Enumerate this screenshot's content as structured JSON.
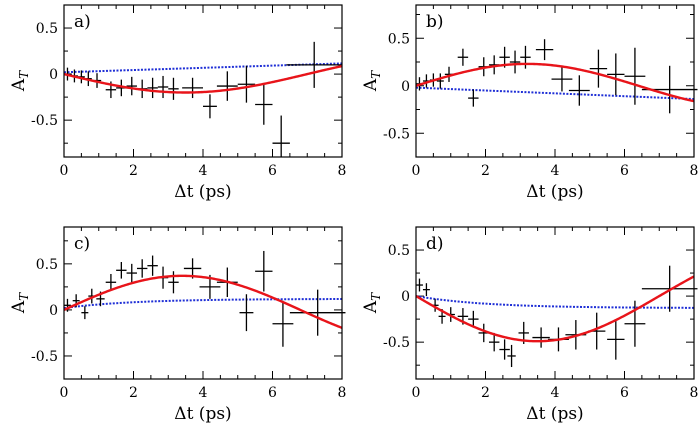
{
  "chart_data": [
    {
      "type": "scatter",
      "panel_label": "a)",
      "xlabel": "Δt (ps)",
      "ylabel": "A",
      "ylabel_sub": "T",
      "xlim": [
        0,
        8
      ],
      "ylim": [
        -0.9,
        0.75
      ],
      "xticks": [
        0,
        2,
        4,
        6,
        8
      ],
      "yticks": [
        0.5,
        0,
        -0.5
      ],
      "ytick_labels": [
        "0.5",
        "0",
        "-0.5"
      ],
      "curves": {
        "fit": {
          "color": "#e8141a",
          "offset": 0,
          "amp": -0.2,
          "t0": 3.5,
          "tail": 0.7
        },
        "reference": {
          "color": "#1f2fd6",
          "offset": 0.02,
          "slope": 0.012
        }
      },
      "points": [
        {
          "x": 0.1,
          "y": 0.0,
          "xerr": 0.1,
          "yerr": 0.07
        },
        {
          "x": 0.3,
          "y": -0.02,
          "xerr": 0.1,
          "yerr": 0.07
        },
        {
          "x": 0.5,
          "y": -0.03,
          "xerr": 0.1,
          "yerr": 0.07
        },
        {
          "x": 0.7,
          "y": -0.05,
          "xerr": 0.1,
          "yerr": 0.08
        },
        {
          "x": 0.95,
          "y": -0.07,
          "xerr": 0.12,
          "yerr": 0.08
        },
        {
          "x": 1.35,
          "y": -0.17,
          "xerr": 0.15,
          "yerr": 0.09
        },
        {
          "x": 1.65,
          "y": -0.15,
          "xerr": 0.15,
          "yerr": 0.09
        },
        {
          "x": 1.95,
          "y": -0.13,
          "xerr": 0.15,
          "yerr": 0.1
        },
        {
          "x": 2.25,
          "y": -0.16,
          "xerr": 0.15,
          "yerr": 0.1
        },
        {
          "x": 2.55,
          "y": -0.15,
          "xerr": 0.15,
          "yerr": 0.11
        },
        {
          "x": 2.85,
          "y": -0.14,
          "xerr": 0.15,
          "yerr": 0.12
        },
        {
          "x": 3.15,
          "y": -0.16,
          "xerr": 0.15,
          "yerr": 0.12
        },
        {
          "x": 3.7,
          "y": -0.15,
          "xerr": 0.3,
          "yerr": 0.11
        },
        {
          "x": 4.2,
          "y": -0.35,
          "xerr": 0.2,
          "yerr": 0.13
        },
        {
          "x": 4.7,
          "y": -0.13,
          "xerr": 0.3,
          "yerr": 0.16
        },
        {
          "x": 5.25,
          "y": -0.11,
          "xerr": 0.25,
          "yerr": 0.2
        },
        {
          "x": 5.75,
          "y": -0.33,
          "xerr": 0.25,
          "yerr": 0.22
        },
        {
          "x": 6.25,
          "y": -0.75,
          "xerr": 0.25,
          "yerr": 0.3
        },
        {
          "x": 7.2,
          "y": 0.1,
          "xerr": 0.8,
          "yerr": 0.25
        }
      ]
    },
    {
      "type": "scatter",
      "panel_label": "b)",
      "xlabel": "Δt (ps)",
      "ylabel": "A",
      "ylabel_sub": "T",
      "xlim": [
        0,
        8
      ],
      "ylim": [
        -0.75,
        0.85
      ],
      "xticks": [
        0,
        2,
        4,
        6,
        8
      ],
      "yticks": [
        0.5,
        0,
        -0.5
      ],
      "ytick_labels": [
        "0.5",
        "0",
        "-0.5"
      ],
      "curves": {
        "fit": {
          "color": "#e8141a",
          "offset": 0,
          "amp": 0.23,
          "t0": 3.2,
          "tail": 0.75
        },
        "reference": {
          "color": "#1f2fd6",
          "offset": -0.02,
          "slope": -0.015
        }
      },
      "points": [
        {
          "x": 0.1,
          "y": 0.02,
          "xerr": 0.1,
          "yerr": 0.07
        },
        {
          "x": 0.3,
          "y": 0.05,
          "xerr": 0.1,
          "yerr": 0.07
        },
        {
          "x": 0.5,
          "y": 0.06,
          "xerr": 0.1,
          "yerr": 0.07
        },
        {
          "x": 0.7,
          "y": 0.05,
          "xerr": 0.1,
          "yerr": 0.08
        },
        {
          "x": 0.95,
          "y": 0.12,
          "xerr": 0.12,
          "yerr": 0.08
        },
        {
          "x": 1.35,
          "y": 0.3,
          "xerr": 0.15,
          "yerr": 0.09
        },
        {
          "x": 1.65,
          "y": -0.13,
          "xerr": 0.15,
          "yerr": 0.09
        },
        {
          "x": 1.95,
          "y": 0.2,
          "xerr": 0.15,
          "yerr": 0.1
        },
        {
          "x": 2.25,
          "y": 0.22,
          "xerr": 0.15,
          "yerr": 0.1
        },
        {
          "x": 2.55,
          "y": 0.3,
          "xerr": 0.15,
          "yerr": 0.11
        },
        {
          "x": 2.85,
          "y": 0.25,
          "xerr": 0.15,
          "yerr": 0.12
        },
        {
          "x": 3.15,
          "y": 0.3,
          "xerr": 0.15,
          "yerr": 0.12
        },
        {
          "x": 3.7,
          "y": 0.38,
          "xerr": 0.25,
          "yerr": 0.11
        },
        {
          "x": 4.2,
          "y": 0.07,
          "xerr": 0.3,
          "yerr": 0.13
        },
        {
          "x": 4.7,
          "y": -0.05,
          "xerr": 0.3,
          "yerr": 0.16
        },
        {
          "x": 5.25,
          "y": 0.18,
          "xerr": 0.25,
          "yerr": 0.2
        },
        {
          "x": 5.75,
          "y": 0.12,
          "xerr": 0.25,
          "yerr": 0.22
        },
        {
          "x": 6.3,
          "y": 0.1,
          "xerr": 0.3,
          "yerr": 0.3
        },
        {
          "x": 7.3,
          "y": -0.04,
          "xerr": 0.8,
          "yerr": 0.25
        }
      ]
    },
    {
      "type": "scatter",
      "panel_label": "c)",
      "xlabel": "Δt (ps)",
      "ylabel": "A",
      "ylabel_sub": "T",
      "xlim": [
        0,
        8
      ],
      "ylim": [
        -0.75,
        0.9
      ],
      "xticks": [
        0,
        2,
        4,
        6,
        8
      ],
      "yticks": [
        0.5,
        0,
        -0.5
      ],
      "ytick_labels": [
        "0.5",
        "0",
        "-0.5"
      ],
      "curves": {
        "fit": {
          "color": "#e8141a",
          "offset": 0,
          "amp": 0.37,
          "t0": 3.4,
          "tail": 0.2
        },
        "reference": {
          "color": "#1f2fd6",
          "offset": 0.02,
          "amp": 0.1,
          "decay": 0.5
        }
      },
      "points": [
        {
          "x": 0.1,
          "y": 0.05,
          "xerr": 0.1,
          "yerr": 0.07
        },
        {
          "x": 0.35,
          "y": 0.1,
          "xerr": 0.1,
          "yerr": 0.07
        },
        {
          "x": 0.6,
          "y": -0.03,
          "xerr": 0.1,
          "yerr": 0.07
        },
        {
          "x": 0.8,
          "y": 0.15,
          "xerr": 0.1,
          "yerr": 0.08
        },
        {
          "x": 1.05,
          "y": 0.12,
          "xerr": 0.12,
          "yerr": 0.08
        },
        {
          "x": 1.35,
          "y": 0.3,
          "xerr": 0.15,
          "yerr": 0.09
        },
        {
          "x": 1.65,
          "y": 0.43,
          "xerr": 0.15,
          "yerr": 0.09
        },
        {
          "x": 1.95,
          "y": 0.4,
          "xerr": 0.15,
          "yerr": 0.1
        },
        {
          "x": 2.25,
          "y": 0.45,
          "xerr": 0.15,
          "yerr": 0.1
        },
        {
          "x": 2.55,
          "y": 0.48,
          "xerr": 0.15,
          "yerr": 0.11
        },
        {
          "x": 2.85,
          "y": 0.35,
          "xerr": 0.15,
          "yerr": 0.12
        },
        {
          "x": 3.15,
          "y": 0.3,
          "xerr": 0.15,
          "yerr": 0.12
        },
        {
          "x": 3.7,
          "y": 0.45,
          "xerr": 0.25,
          "yerr": 0.11
        },
        {
          "x": 4.2,
          "y": 0.25,
          "xerr": 0.3,
          "yerr": 0.13
        },
        {
          "x": 4.7,
          "y": 0.3,
          "xerr": 0.3,
          "yerr": 0.16
        },
        {
          "x": 5.25,
          "y": -0.03,
          "xerr": 0.2,
          "yerr": 0.2
        },
        {
          "x": 5.75,
          "y": 0.42,
          "xerr": 0.25,
          "yerr": 0.22
        },
        {
          "x": 6.3,
          "y": -0.15,
          "xerr": 0.3,
          "yerr": 0.25
        },
        {
          "x": 7.3,
          "y": -0.03,
          "xerr": 0.8,
          "yerr": 0.25
        }
      ]
    },
    {
      "type": "scatter",
      "panel_label": "d)",
      "xlabel": "Δt (ps)",
      "ylabel": "A",
      "ylabel_sub": "T",
      "xlim": [
        0,
        8
      ],
      "ylim": [
        -0.9,
        0.75
      ],
      "xticks": [
        0,
        2,
        4,
        6,
        8
      ],
      "yticks": [
        0.5,
        0,
        -0.5
      ],
      "ytick_labels": [
        "0.5",
        "0",
        "-0.5"
      ],
      "curves": {
        "fit": {
          "color": "#e8141a",
          "offset": 0,
          "amp": -0.49,
          "t0": 3.5,
          "tail": 0.3
        },
        "reference": {
          "color": "#1f2fd6",
          "offset": 0,
          "amp": -0.13,
          "decay": 0.5
        }
      },
      "points": [
        {
          "x": 0.1,
          "y": 0.12,
          "xerr": 0.1,
          "yerr": 0.07
        },
        {
          "x": 0.3,
          "y": 0.07,
          "xerr": 0.1,
          "yerr": 0.07
        },
        {
          "x": 0.55,
          "y": -0.1,
          "xerr": 0.1,
          "yerr": 0.07
        },
        {
          "x": 0.75,
          "y": -0.22,
          "xerr": 0.1,
          "yerr": 0.08
        },
        {
          "x": 1.0,
          "y": -0.2,
          "xerr": 0.12,
          "yerr": 0.08
        },
        {
          "x": 1.35,
          "y": -0.22,
          "xerr": 0.15,
          "yerr": 0.09
        },
        {
          "x": 1.65,
          "y": -0.25,
          "xerr": 0.15,
          "yerr": 0.09
        },
        {
          "x": 1.95,
          "y": -0.4,
          "xerr": 0.15,
          "yerr": 0.1
        },
        {
          "x": 2.25,
          "y": -0.5,
          "xerr": 0.15,
          "yerr": 0.1
        },
        {
          "x": 2.55,
          "y": -0.58,
          "xerr": 0.15,
          "yerr": 0.11
        },
        {
          "x": 2.75,
          "y": -0.65,
          "xerr": 0.12,
          "yerr": 0.12
        },
        {
          "x": 3.1,
          "y": -0.4,
          "xerr": 0.15,
          "yerr": 0.12
        },
        {
          "x": 3.6,
          "y": -0.45,
          "xerr": 0.25,
          "yerr": 0.11
        },
        {
          "x": 4.1,
          "y": -0.47,
          "xerr": 0.3,
          "yerr": 0.13
        },
        {
          "x": 4.6,
          "y": -0.42,
          "xerr": 0.3,
          "yerr": 0.16
        },
        {
          "x": 5.2,
          "y": -0.38,
          "xerr": 0.25,
          "yerr": 0.2
        },
        {
          "x": 5.75,
          "y": -0.47,
          "xerr": 0.25,
          "yerr": 0.22
        },
        {
          "x": 6.3,
          "y": -0.3,
          "xerr": 0.3,
          "yerr": 0.25
        },
        {
          "x": 7.3,
          "y": 0.08,
          "xerr": 0.8,
          "yerr": 0.25
        }
      ]
    }
  ]
}
